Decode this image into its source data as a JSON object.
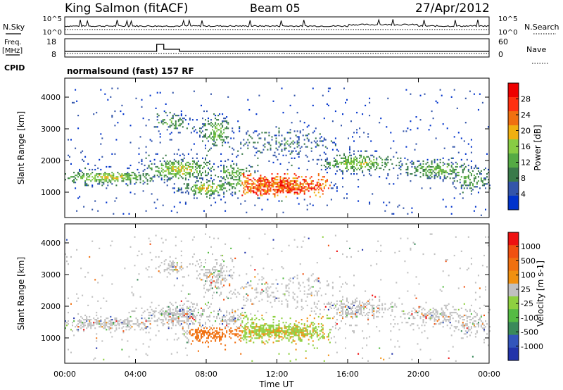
{
  "header": {
    "station": "King Salmon (fitACF)",
    "beam": "Beam 05",
    "date": "27/Apr/2012"
  },
  "top_panels": {
    "nsky_label": "N.Sky",
    "nsky_ticks": [
      "10^5",
      "10^0"
    ],
    "nsearch_label": "N.Search",
    "nsearch_ticks": [
      "10^5",
      "10^0"
    ],
    "freq_label_1": "Freq.",
    "freq_label_2": "[MHz]",
    "freq_ticks": [
      "18",
      "8"
    ],
    "nave_label": "Nave",
    "nave_ticks": [
      "60",
      "0"
    ],
    "cpid_label": "CPID",
    "cpid_text": "normalsound (fast) 157 RF"
  },
  "colors": {
    "power_scale": [
      "#0033cc",
      "#3355aa",
      "#3a7a4a",
      "#55aa44",
      "#88cc44",
      "#f0b010",
      "#f07010",
      "#ff3010",
      "#ee0000"
    ],
    "velocity_scale": [
      "#2233aa",
      "#3355bb",
      "#3a8a5a",
      "#55bb44",
      "#8ed040",
      "#c0c0c0",
      "#f09010",
      "#f07010",
      "#f05010",
      "#ee1010"
    ]
  },
  "chart_data": [
    {
      "type": "heatmap",
      "name": "power",
      "ylabel": "Slant Range [km]",
      "yticks": [
        "4000",
        "3000",
        "2000",
        "1000"
      ],
      "ylim": [
        200,
        4600
      ],
      "colorbar_label": "Power [dB]",
      "colorbar_ticks": [
        "28",
        "24",
        "20",
        "16",
        "12",
        "8",
        "4"
      ],
      "colorbar_range": [
        0,
        32
      ]
    },
    {
      "type": "heatmap",
      "name": "velocity",
      "ylabel": "Slant Range [km]",
      "yticks": [
        "4000",
        "3000",
        "2000",
        "1000"
      ],
      "ylim": [
        200,
        4600
      ],
      "colorbar_label": "Velocity [m s-1]",
      "colorbar_ticks": [
        "1000",
        "500",
        "100",
        "25",
        "-25",
        "-100",
        "-500",
        "-1000"
      ]
    }
  ],
  "time_axis": {
    "xlabel": "Time UT",
    "ticks": [
      "00:00",
      "04:00",
      "08:00",
      "12:00",
      "16:00",
      "20:00",
      "00:00"
    ],
    "range_hours": [
      0,
      24
    ]
  }
}
